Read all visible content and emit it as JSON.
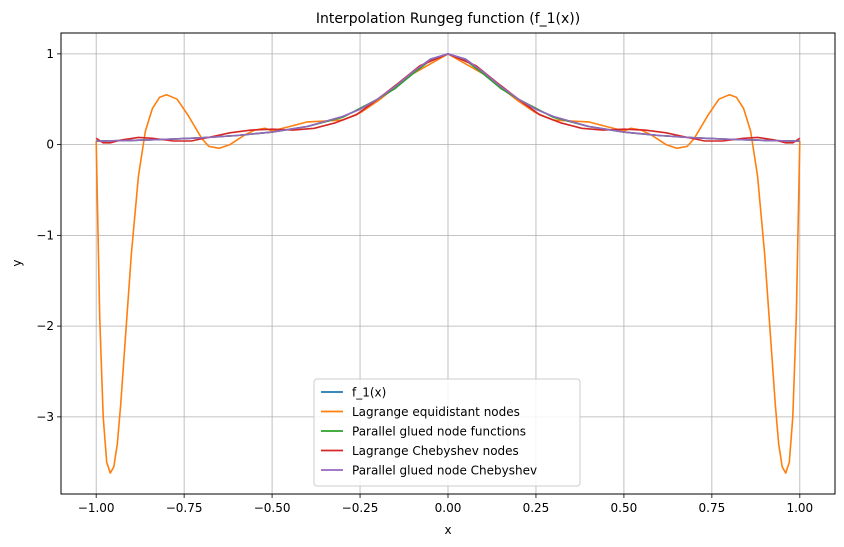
{
  "chart_data": {
    "type": "line",
    "title": "Interpolation Rungeg function (f_1(x))",
    "xlabel": "x",
    "ylabel": "y",
    "xlim": [
      -1.1,
      1.1
    ],
    "ylim": [
      -3.85,
      1.23
    ],
    "grid": true,
    "legend_position": "bottom-center",
    "x_ticks": [
      -1.0,
      -0.75,
      -0.5,
      -0.25,
      0.0,
      0.25,
      0.5,
      0.75,
      1.0
    ],
    "x_tick_labels": [
      "−1.00",
      "−0.75",
      "−0.50",
      "−0.25",
      "0.00",
      "0.25",
      "0.50",
      "0.75",
      "1.00"
    ],
    "y_ticks": [
      -3,
      -2,
      -1,
      0,
      1
    ],
    "y_tick_labels": [
      "−3",
      "−2",
      "−1",
      "0",
      "1"
    ],
    "series": [
      {
        "name": "f_1(x)",
        "color": "#1f77b4",
        "x": [
          -1.0,
          -0.9,
          -0.8,
          -0.7,
          -0.6,
          -0.5,
          -0.4,
          -0.3,
          -0.25,
          -0.2,
          -0.15,
          -0.1,
          -0.05,
          0.0,
          0.05,
          0.1,
          0.15,
          0.2,
          0.25,
          0.3,
          0.4,
          0.5,
          0.6,
          0.7,
          0.8,
          0.9,
          1.0
        ],
        "y": [
          0.038,
          0.047,
          0.059,
          0.075,
          0.1,
          0.138,
          0.2,
          0.308,
          0.39,
          0.5,
          0.64,
          0.8,
          0.941,
          1.0,
          0.941,
          0.8,
          0.64,
          0.5,
          0.39,
          0.308,
          0.2,
          0.138,
          0.1,
          0.075,
          0.059,
          0.047,
          0.038
        ]
      },
      {
        "name": "Lagrange equidistant nodes",
        "color": "#ff7f0e",
        "x": [
          -1.0,
          -0.99,
          -0.98,
          -0.97,
          -0.96,
          -0.95,
          -0.94,
          -0.93,
          -0.92,
          -0.9,
          -0.88,
          -0.86,
          -0.84,
          -0.82,
          -0.8,
          -0.77,
          -0.74,
          -0.72,
          -0.7,
          -0.68,
          -0.65,
          -0.62,
          -0.6,
          -0.58,
          -0.55,
          -0.52,
          -0.5,
          -0.45,
          -0.4,
          -0.35,
          -0.3,
          -0.25,
          -0.2,
          -0.1,
          0.0,
          0.1,
          0.2,
          0.25,
          0.3,
          0.35,
          0.4,
          0.45,
          0.5,
          0.52,
          0.55,
          0.58,
          0.6,
          0.62,
          0.65,
          0.68,
          0.7,
          0.72,
          0.74,
          0.77,
          0.8,
          0.82,
          0.84,
          0.86,
          0.88,
          0.9,
          0.92,
          0.93,
          0.94,
          0.95,
          0.96,
          0.97,
          0.98,
          0.99,
          1.0
        ],
        "y": [
          0.04,
          -1.9,
          -3.0,
          -3.5,
          -3.62,
          -3.55,
          -3.3,
          -2.85,
          -2.3,
          -1.2,
          -0.35,
          0.15,
          0.4,
          0.52,
          0.55,
          0.5,
          0.33,
          0.2,
          0.07,
          -0.02,
          -0.04,
          0.0,
          0.05,
          0.1,
          0.16,
          0.18,
          0.15,
          0.2,
          0.25,
          0.26,
          0.27,
          0.35,
          0.48,
          0.78,
          1.0,
          0.78,
          0.48,
          0.35,
          0.27,
          0.26,
          0.25,
          0.2,
          0.15,
          0.18,
          0.16,
          0.1,
          0.05,
          0.0,
          -0.04,
          -0.02,
          0.07,
          0.2,
          0.33,
          0.5,
          0.55,
          0.52,
          0.4,
          0.15,
          -0.35,
          -1.2,
          -2.3,
          -2.85,
          -3.3,
          -3.55,
          -3.62,
          -3.5,
          -3.0,
          -1.9,
          0.04
        ]
      },
      {
        "name": "Parallel glued node functions",
        "color": "#2ca02c",
        "x": [
          -1.0,
          -0.9,
          -0.8,
          -0.7,
          -0.6,
          -0.5,
          -0.4,
          -0.3,
          -0.25,
          -0.2,
          -0.15,
          -0.1,
          -0.05,
          0.0,
          0.05,
          0.1,
          0.15,
          0.2,
          0.25,
          0.3,
          0.4,
          0.5,
          0.6,
          0.7,
          0.8,
          0.9,
          1.0
        ],
        "y": [
          0.038,
          0.047,
          0.059,
          0.075,
          0.1,
          0.138,
          0.2,
          0.3,
          0.4,
          0.5,
          0.62,
          0.78,
          0.93,
          1.0,
          0.93,
          0.78,
          0.62,
          0.5,
          0.4,
          0.3,
          0.2,
          0.138,
          0.1,
          0.075,
          0.059,
          0.047,
          0.038
        ]
      },
      {
        "name": "Lagrange Chebyshev nodes",
        "color": "#d62728",
        "x": [
          -1.0,
          -0.98,
          -0.96,
          -0.93,
          -0.88,
          -0.84,
          -0.78,
          -0.73,
          -0.68,
          -0.62,
          -0.56,
          -0.5,
          -0.44,
          -0.38,
          -0.32,
          -0.26,
          -0.2,
          -0.14,
          -0.08,
          0.0,
          0.08,
          0.14,
          0.2,
          0.26,
          0.32,
          0.38,
          0.44,
          0.5,
          0.56,
          0.62,
          0.68,
          0.73,
          0.78,
          0.84,
          0.88,
          0.93,
          0.96,
          0.98,
          1.0
        ],
        "y": [
          0.07,
          0.02,
          0.02,
          0.05,
          0.08,
          0.07,
          0.04,
          0.04,
          0.08,
          0.13,
          0.16,
          0.17,
          0.16,
          0.18,
          0.24,
          0.33,
          0.5,
          0.68,
          0.87,
          1.0,
          0.87,
          0.68,
          0.5,
          0.33,
          0.24,
          0.18,
          0.16,
          0.17,
          0.16,
          0.13,
          0.08,
          0.04,
          0.04,
          0.07,
          0.08,
          0.05,
          0.02,
          0.02,
          0.07
        ]
      },
      {
        "name": "Parallel glued node Chebyshev",
        "color": "#9467bd",
        "x": [
          -1.0,
          -0.9,
          -0.8,
          -0.7,
          -0.6,
          -0.5,
          -0.4,
          -0.3,
          -0.25,
          -0.2,
          -0.15,
          -0.1,
          -0.05,
          0.0,
          0.05,
          0.1,
          0.15,
          0.2,
          0.25,
          0.3,
          0.4,
          0.5,
          0.6,
          0.7,
          0.8,
          0.9,
          1.0
        ],
        "y": [
          0.038,
          0.047,
          0.059,
          0.075,
          0.1,
          0.138,
          0.2,
          0.31,
          0.39,
          0.5,
          0.64,
          0.8,
          0.94,
          1.0,
          0.94,
          0.8,
          0.64,
          0.5,
          0.39,
          0.31,
          0.2,
          0.138,
          0.1,
          0.075,
          0.059,
          0.047,
          0.038
        ]
      }
    ]
  }
}
